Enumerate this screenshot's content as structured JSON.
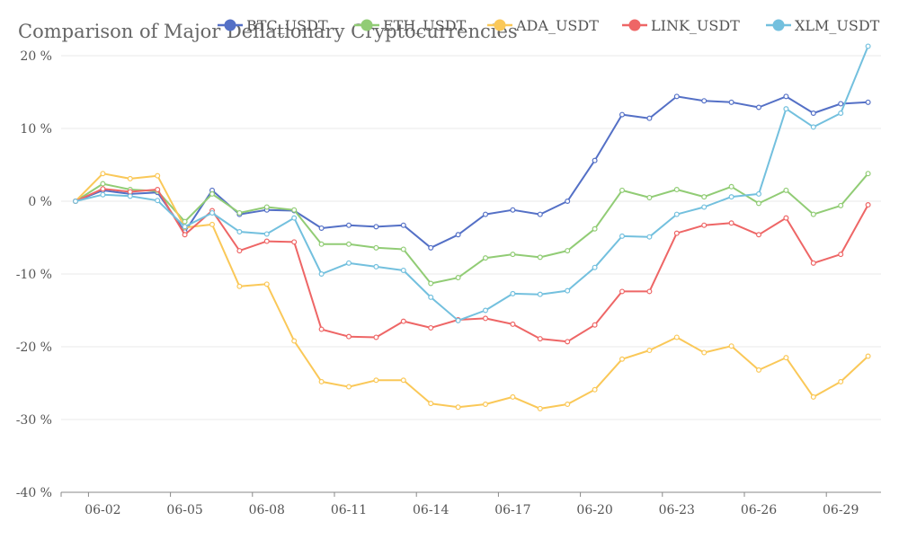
{
  "chart_data": {
    "type": "line",
    "title": "Comparison of Major Deflationary Cryptocurrencies",
    "xlabel": "",
    "ylabel": "",
    "y_unit": "%",
    "ylim": [
      -40,
      20
    ],
    "y_ticks": [
      -40,
      -30,
      -20,
      -10,
      0,
      10,
      20
    ],
    "y_tick_labels": [
      "-40 %",
      "-30 %",
      "-20 %",
      "-10 %",
      "0 %",
      "10 %",
      "20 %"
    ],
    "x": [
      "06-01",
      "06-02",
      "06-03",
      "06-04",
      "06-05",
      "06-06",
      "06-07",
      "06-08",
      "06-09",
      "06-10",
      "06-11",
      "06-12",
      "06-13",
      "06-14",
      "06-15",
      "06-16",
      "06-17",
      "06-18",
      "06-19",
      "06-20",
      "06-21",
      "06-22",
      "06-23",
      "06-24",
      "06-25",
      "06-26",
      "06-27",
      "06-28",
      "06-29",
      "06-30"
    ],
    "x_tick_labels": [
      "06-02",
      "06-05",
      "06-08",
      "06-11",
      "06-14",
      "06-17",
      "06-20",
      "06-23",
      "06-26",
      "06-29"
    ],
    "grid": "horizontal",
    "legend_position": "top",
    "series": [
      {
        "name": "BTC_USDT",
        "color": "#5470c6",
        "values": [
          0,
          1.5,
          1.0,
          1.2,
          -4.2,
          1.5,
          -1.8,
          -1.2,
          -1.3,
          -3.7,
          -3.3,
          -3.5,
          -3.3,
          -6.4,
          -4.6,
          -1.8,
          -1.2,
          -1.8,
          0,
          5.6,
          11.9,
          11.4,
          14.4,
          13.8,
          13.6,
          12.9,
          14.4,
          12.1,
          13.4,
          13.6
        ]
      },
      {
        "name": "ETH_USDT",
        "color": "#91cc75",
        "values": [
          0,
          2.4,
          1.6,
          1.4,
          -2.8,
          1.0,
          -1.6,
          -0.8,
          -1.2,
          -5.9,
          -5.9,
          -6.4,
          -6.6,
          -11.3,
          -10.5,
          -7.8,
          -7.3,
          -7.7,
          -6.8,
          -3.8,
          1.5,
          0.5,
          1.6,
          0.6,
          2.0,
          -0.3,
          1.5,
          -1.8,
          -0.6,
          3.8
        ]
      },
      {
        "name": "ADA_USDT",
        "color": "#fac858",
        "values": [
          0,
          3.8,
          3.1,
          3.5,
          -3.6,
          -3.2,
          -11.7,
          -11.4,
          -19.2,
          -24.8,
          -25.5,
          -24.6,
          -24.6,
          -27.8,
          -28.3,
          -27.9,
          -26.9,
          -28.5,
          -27.9,
          -25.9,
          -21.7,
          -20.5,
          -18.7,
          -20.8,
          -19.9,
          -23.2,
          -21.5,
          -26.9,
          -24.8,
          -21.3
        ]
      },
      {
        "name": "LINK_USDT",
        "color": "#ee6666",
        "values": [
          0,
          1.7,
          1.3,
          1.6,
          -4.6,
          -1.3,
          -6.8,
          -5.5,
          -5.6,
          -17.6,
          -18.6,
          -18.7,
          -16.5,
          -17.4,
          -16.3,
          -16.1,
          -16.9,
          -18.9,
          -19.3,
          -17.0,
          -12.4,
          -12.4,
          -4.4,
          -3.3,
          -3.0,
          -4.6,
          -2.3,
          -8.5,
          -7.3,
          -0.5
        ]
      },
      {
        "name": "XLM_USDT",
        "color": "#73c0de",
        "values": [
          0,
          0.9,
          0.7,
          0.1,
          -3.5,
          -1.6,
          -4.2,
          -4.5,
          -2.3,
          -10.0,
          -8.5,
          -9.0,
          -9.5,
          -13.2,
          -16.4,
          -15.0,
          -12.7,
          -12.8,
          -12.3,
          -9.1,
          -4.8,
          -4.9,
          -1.8,
          -0.8,
          0.6,
          1.0,
          12.7,
          10.2,
          12.1,
          21.3
        ]
      }
    ]
  }
}
